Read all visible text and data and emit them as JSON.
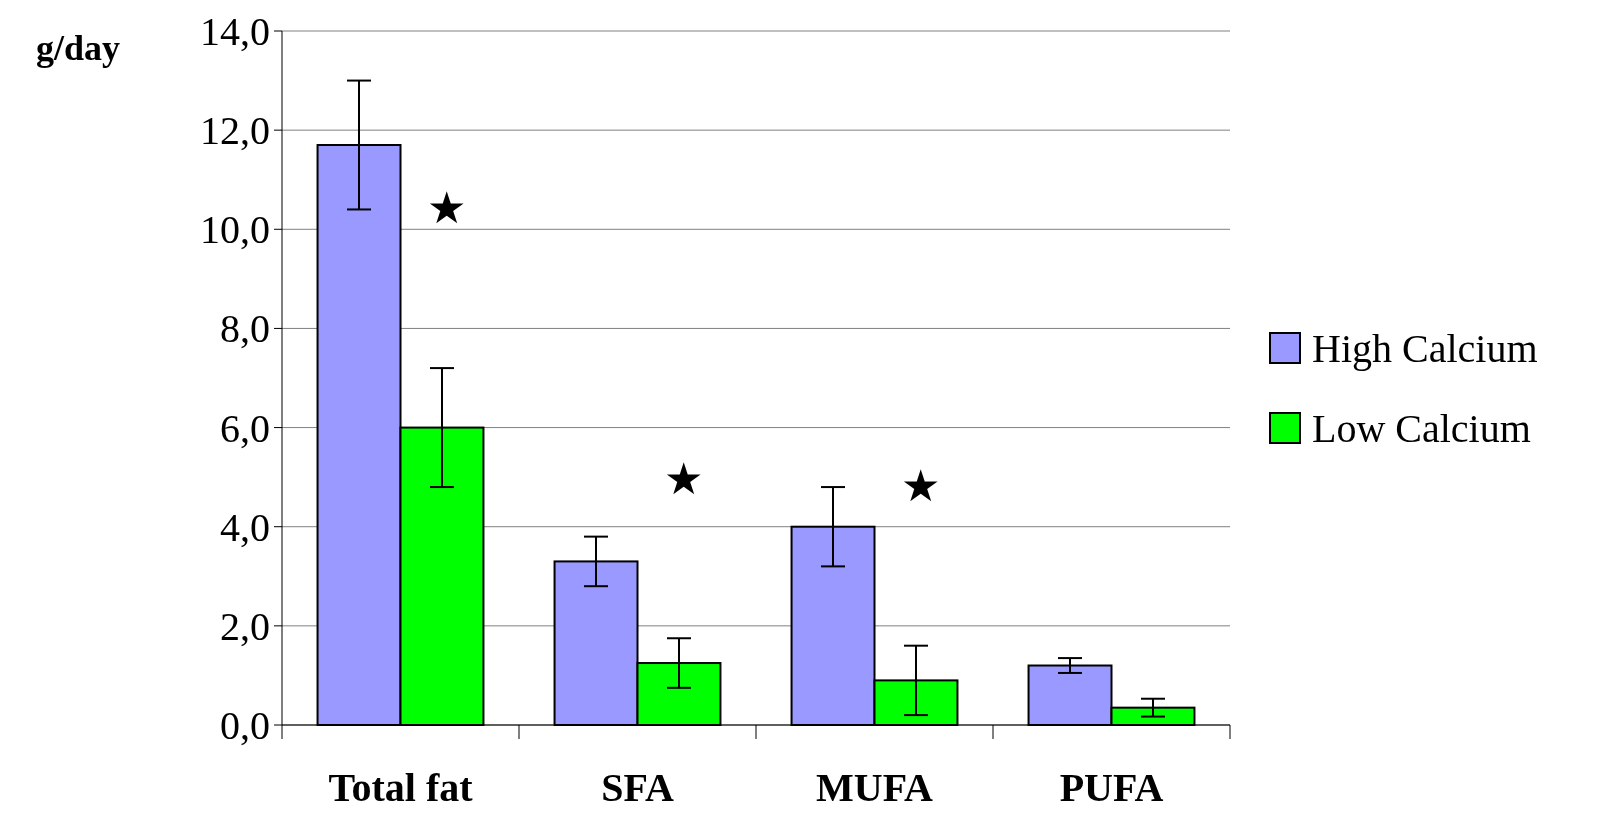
{
  "chart_data": {
    "type": "bar",
    "ylabel": "g/day",
    "categories": [
      "Total fat",
      "SFA",
      "MUFA",
      "PUFA"
    ],
    "series": [
      {
        "name": "High Calcium",
        "color": "#9999ff",
        "values": [
          11.7,
          3.3,
          4.0,
          1.2
        ],
        "errors": [
          1.3,
          0.5,
          0.8,
          0.15
        ]
      },
      {
        "name": "Low Calcium",
        "color": "#00ff00",
        "values": [
          6.0,
          1.25,
          0.9,
          0.35
        ],
        "errors": [
          1.2,
          0.5,
          0.7,
          0.18
        ]
      }
    ],
    "ylim": [
      0,
      14
    ],
    "yticks": [
      {
        "value": 0,
        "label": "0,0"
      },
      {
        "value": 2,
        "label": "2,0"
      },
      {
        "value": 4,
        "label": "4,0"
      },
      {
        "value": 6,
        "label": "6,0"
      },
      {
        "value": 8,
        "label": "8,0"
      },
      {
        "value": 10,
        "label": "10,0"
      },
      {
        "value": 12,
        "label": "12,0"
      },
      {
        "value": 14,
        "label": "14,0"
      }
    ],
    "grid": "y",
    "legend": "right",
    "annotations": [
      "★",
      "★",
      "★"
    ]
  }
}
